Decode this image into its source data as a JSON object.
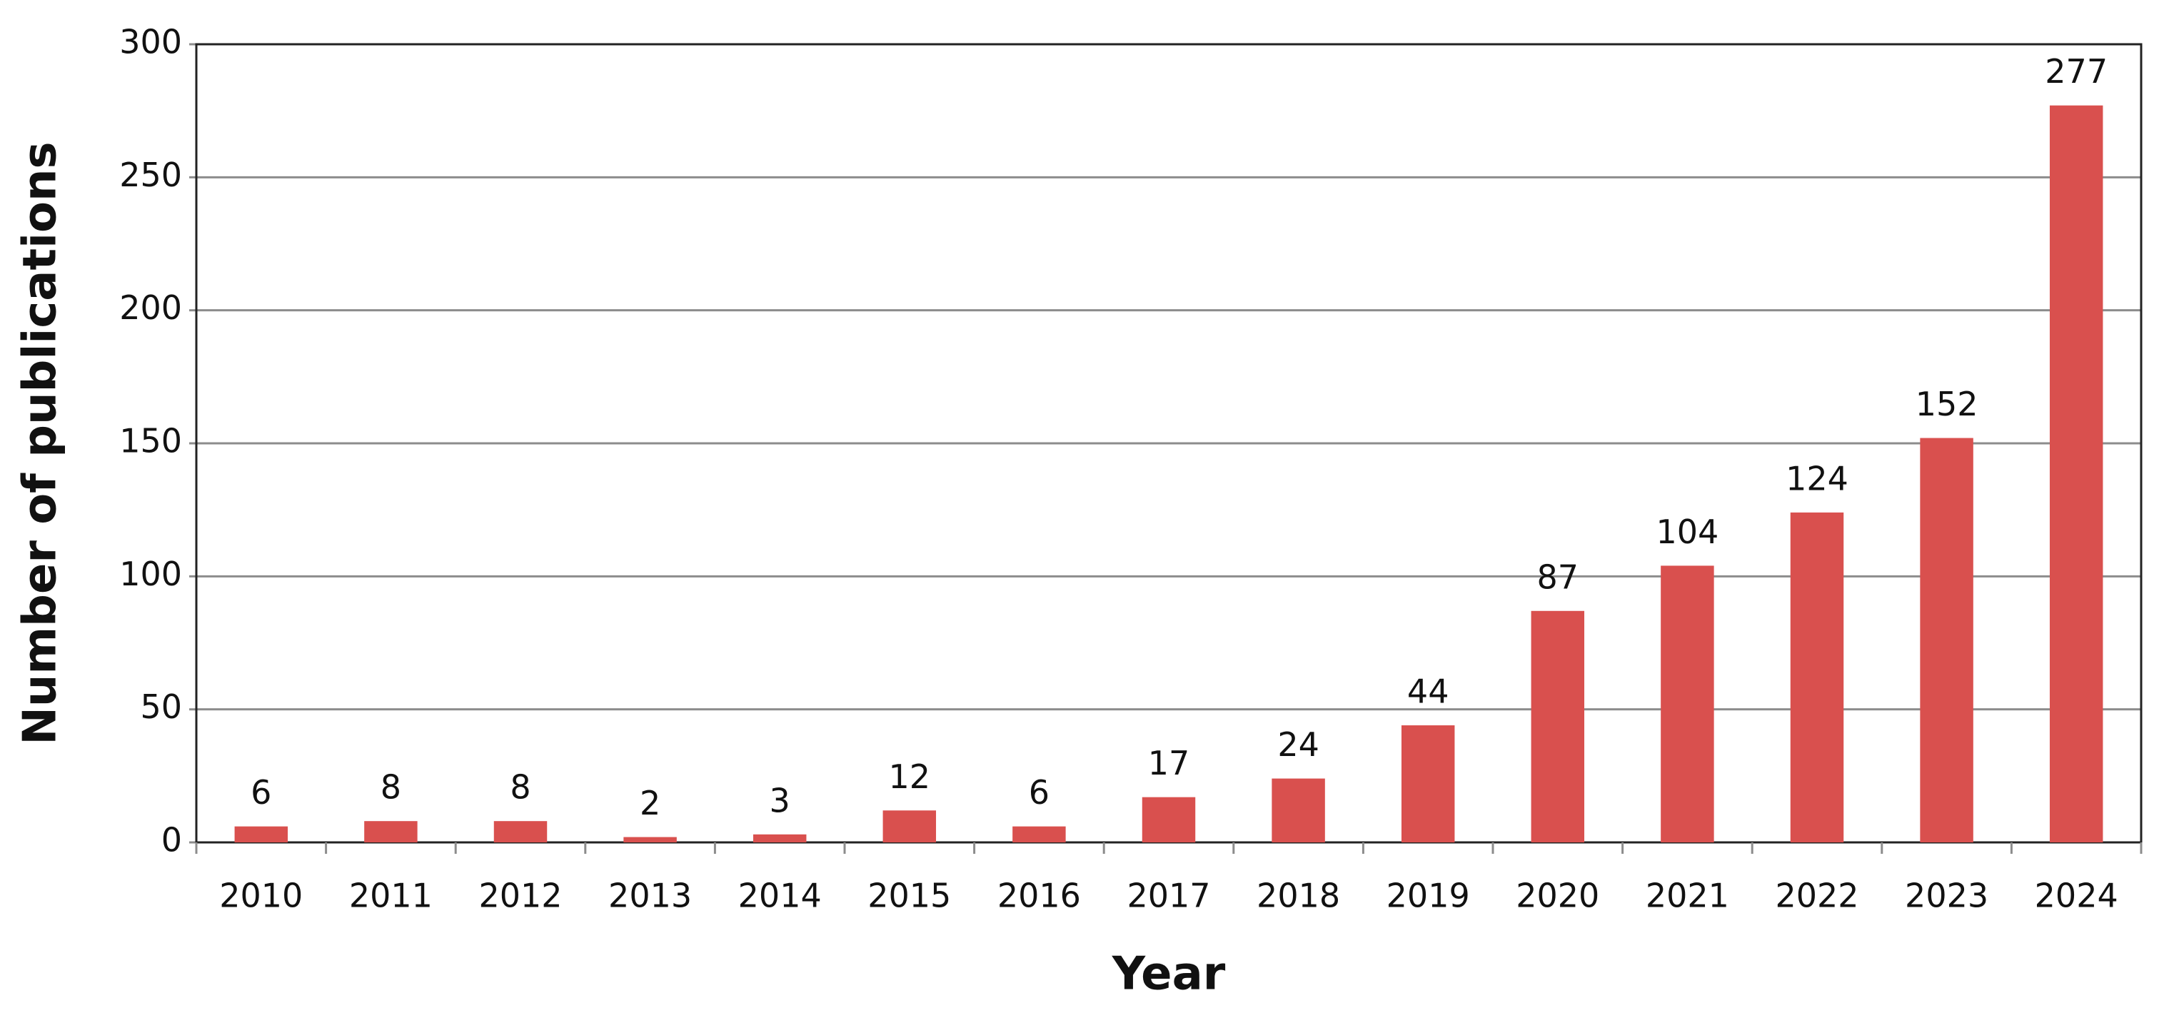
{
  "chart_data": {
    "type": "bar",
    "x_label": "Year",
    "y_label": "Number of publications",
    "categories": [
      "2010",
      "2011",
      "2012",
      "2013",
      "2014",
      "2015",
      "2016",
      "2017",
      "2018",
      "2019",
      "2020",
      "2021",
      "2022",
      "2023",
      "2024"
    ],
    "values": [
      6,
      8,
      8,
      2,
      3,
      12,
      6,
      17,
      24,
      44,
      87,
      104,
      124,
      152,
      277
    ],
    "color": "#d9504e",
    "ylim": [
      0,
      300
    ],
    "yticks": [
      0,
      50,
      100,
      150,
      200,
      250,
      300
    ],
    "grid": true
  }
}
